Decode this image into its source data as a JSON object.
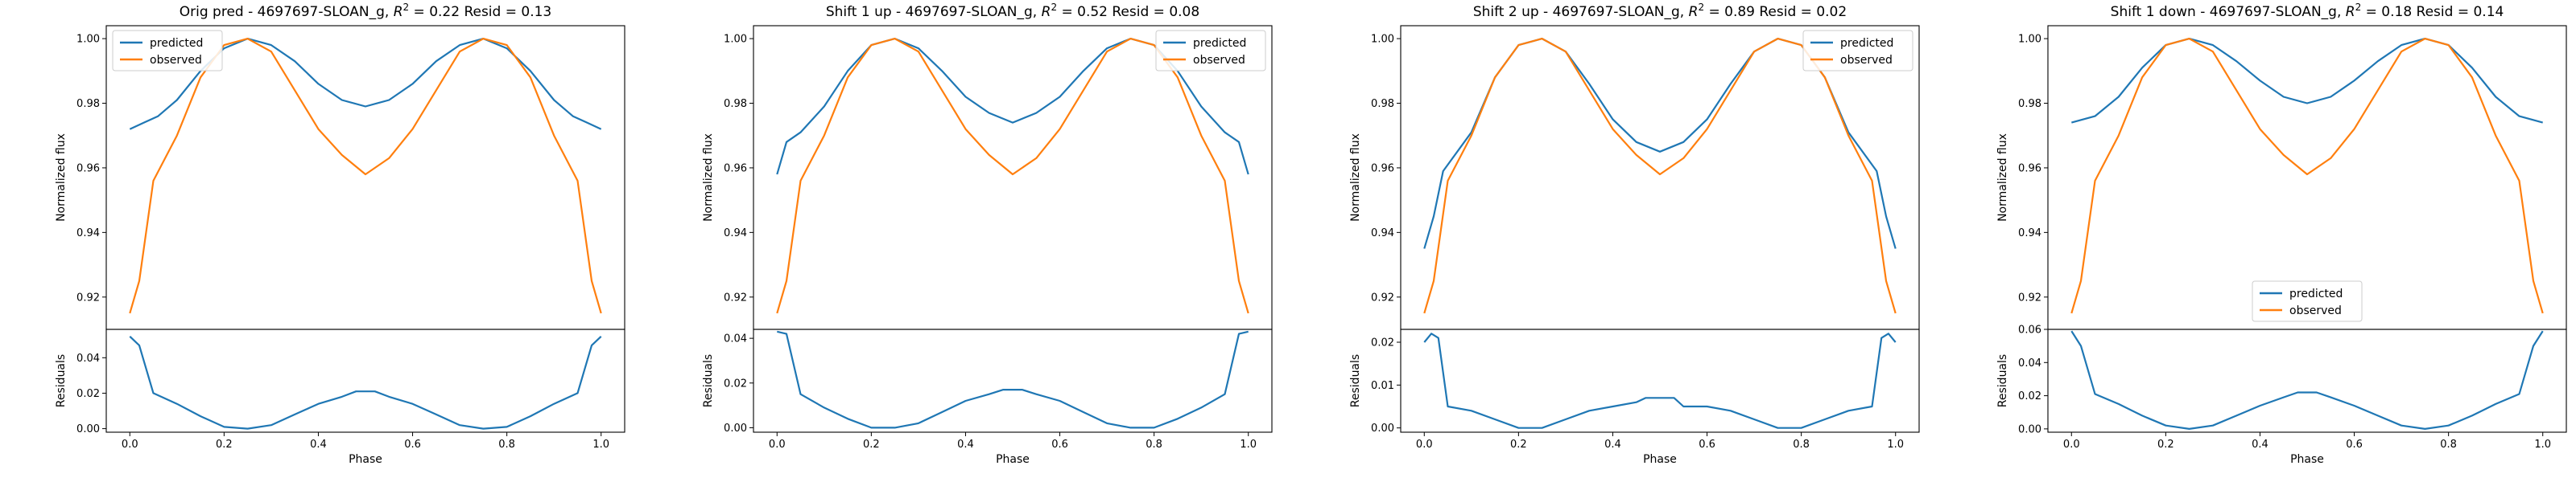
{
  "figure": {
    "background": "#ffffff"
  },
  "colors": {
    "predicted": "#1f77b4",
    "observed": "#ff7f0e",
    "axis": "#000000",
    "legend_border": "#cccccc"
  },
  "chart_data": [
    {
      "type": "line",
      "title": "Orig pred - 4697697-SLOAN_g, R² = 0.22 Resid = 0.13",
      "title_parts": {
        "prefix": "Orig pred - 4697697-SLOAN_g, ",
        "r": "R",
        "sup": "2",
        "suffix": " = 0.22 Resid = 0.13"
      },
      "xlabel": "Phase",
      "ylabel": "Normalized flux",
      "resid_ylabel": "Residuals",
      "xlim": [
        -0.05,
        1.05
      ],
      "xticks": [
        0.0,
        0.2,
        0.4,
        0.6,
        0.8,
        1.0
      ],
      "xtick_labels": [
        "0.0",
        "0.2",
        "0.4",
        "0.6",
        "0.8",
        "1.0"
      ],
      "ylim": [
        0.91,
        1.004
      ],
      "yticks": [
        0.92,
        0.94,
        0.96,
        0.98,
        1.0
      ],
      "ytick_labels": [
        "0.92",
        "0.94",
        "0.96",
        "0.98",
        "1.00"
      ],
      "resid_ylim": [
        -0.002,
        0.056
      ],
      "resid_yticks": [
        0.0,
        0.02,
        0.04
      ],
      "resid_ytick_labels": [
        "0.00",
        "0.02",
        "0.04"
      ],
      "legend": {
        "position": "upper left",
        "entries": [
          "predicted",
          "observed"
        ]
      },
      "series": [
        {
          "name": "predicted",
          "x": [
            0.0,
            0.03,
            0.06,
            0.1,
            0.15,
            0.2,
            0.25,
            0.3,
            0.35,
            0.4,
            0.45,
            0.5,
            0.55,
            0.6,
            0.65,
            0.7,
            0.75,
            0.8,
            0.85,
            0.9,
            0.94,
            0.97,
            1.0
          ],
          "y": [
            0.972,
            0.974,
            0.976,
            0.981,
            0.99,
            0.997,
            1.0,
            0.998,
            0.993,
            0.986,
            0.981,
            0.979,
            0.981,
            0.986,
            0.993,
            0.998,
            1.0,
            0.997,
            0.99,
            0.981,
            0.976,
            0.974,
            0.972
          ]
        },
        {
          "name": "observed",
          "x": [
            0.0,
            0.02,
            0.05,
            0.1,
            0.15,
            0.2,
            0.25,
            0.3,
            0.35,
            0.4,
            0.45,
            0.5,
            0.55,
            0.6,
            0.65,
            0.7,
            0.75,
            0.8,
            0.85,
            0.9,
            0.95,
            0.98,
            1.0
          ],
          "y": [
            0.915,
            0.925,
            0.956,
            0.97,
            0.988,
            0.998,
            1.0,
            0.996,
            0.984,
            0.972,
            0.964,
            0.958,
            0.963,
            0.972,
            0.984,
            0.996,
            1.0,
            0.998,
            0.988,
            0.97,
            0.956,
            0.925,
            0.915
          ]
        }
      ],
      "residuals": {
        "x": [
          0.0,
          0.02,
          0.05,
          0.1,
          0.15,
          0.2,
          0.25,
          0.3,
          0.35,
          0.4,
          0.45,
          0.48,
          0.5,
          0.52,
          0.55,
          0.6,
          0.65,
          0.7,
          0.75,
          0.8,
          0.85,
          0.9,
          0.95,
          0.98,
          1.0
        ],
        "y": [
          0.052,
          0.047,
          0.02,
          0.014,
          0.007,
          0.001,
          0.0,
          0.002,
          0.008,
          0.014,
          0.018,
          0.021,
          0.021,
          0.021,
          0.018,
          0.014,
          0.008,
          0.002,
          0.0,
          0.001,
          0.007,
          0.014,
          0.02,
          0.047,
          0.052
        ]
      }
    },
    {
      "type": "line",
      "title": "Shift 1 up - 4697697-SLOAN_g, R² = 0.52 Resid = 0.08",
      "title_parts": {
        "prefix": "Shift 1 up - 4697697-SLOAN_g, ",
        "r": "R",
        "sup": "2",
        "suffix": " = 0.52 Resid = 0.08"
      },
      "xlabel": "Phase",
      "ylabel": "Normalized flux",
      "resid_ylabel": "Residuals",
      "xlim": [
        -0.05,
        1.05
      ],
      "xticks": [
        0.0,
        0.2,
        0.4,
        0.6,
        0.8,
        1.0
      ],
      "xtick_labels": [
        "0.0",
        "0.2",
        "0.4",
        "0.6",
        "0.8",
        "1.0"
      ],
      "ylim": [
        0.91,
        1.004
      ],
      "yticks": [
        0.92,
        0.94,
        0.96,
        0.98,
        1.0
      ],
      "ytick_labels": [
        "0.92",
        "0.94",
        "0.96",
        "0.98",
        "1.00"
      ],
      "resid_ylim": [
        -0.002,
        0.044
      ],
      "resid_yticks": [
        0.0,
        0.02,
        0.04
      ],
      "resid_ytick_labels": [
        "0.00",
        "0.02",
        "0.04"
      ],
      "legend": {
        "position": "upper right",
        "entries": [
          "predicted",
          "observed"
        ]
      },
      "series": [
        {
          "name": "predicted",
          "x": [
            0.0,
            0.02,
            0.05,
            0.1,
            0.15,
            0.2,
            0.25,
            0.3,
            0.35,
            0.4,
            0.45,
            0.5,
            0.55,
            0.6,
            0.65,
            0.7,
            0.75,
            0.8,
            0.85,
            0.9,
            0.95,
            0.98,
            1.0
          ],
          "y": [
            0.958,
            0.968,
            0.971,
            0.979,
            0.99,
            0.998,
            1.0,
            0.997,
            0.99,
            0.982,
            0.977,
            0.974,
            0.977,
            0.982,
            0.99,
            0.997,
            1.0,
            0.998,
            0.99,
            0.979,
            0.971,
            0.968,
            0.958
          ]
        },
        {
          "name": "observed",
          "x": [
            0.0,
            0.02,
            0.05,
            0.1,
            0.15,
            0.2,
            0.25,
            0.3,
            0.35,
            0.4,
            0.45,
            0.5,
            0.55,
            0.6,
            0.65,
            0.7,
            0.75,
            0.8,
            0.85,
            0.9,
            0.95,
            0.98,
            1.0
          ],
          "y": [
            0.915,
            0.925,
            0.956,
            0.97,
            0.988,
            0.998,
            1.0,
            0.996,
            0.984,
            0.972,
            0.964,
            0.958,
            0.963,
            0.972,
            0.984,
            0.996,
            1.0,
            0.998,
            0.988,
            0.97,
            0.956,
            0.925,
            0.915
          ]
        }
      ],
      "residuals": {
        "x": [
          0.0,
          0.02,
          0.05,
          0.1,
          0.15,
          0.2,
          0.25,
          0.3,
          0.35,
          0.4,
          0.45,
          0.48,
          0.5,
          0.52,
          0.55,
          0.6,
          0.65,
          0.7,
          0.75,
          0.8,
          0.85,
          0.9,
          0.95,
          0.98,
          1.0
        ],
        "y": [
          0.043,
          0.042,
          0.015,
          0.009,
          0.004,
          0.0,
          0.0,
          0.002,
          0.007,
          0.012,
          0.015,
          0.017,
          0.017,
          0.017,
          0.015,
          0.012,
          0.007,
          0.002,
          0.0,
          0.0,
          0.004,
          0.009,
          0.015,
          0.042,
          0.043
        ]
      }
    },
    {
      "type": "line",
      "title": "Shift 2 up - 4697697-SLOAN_g, R² = 0.89 Resid = 0.02",
      "title_parts": {
        "prefix": "Shift 2 up - 4697697-SLOAN_g, ",
        "r": "R",
        "sup": "2",
        "suffix": " = 0.89 Resid = 0.02"
      },
      "xlabel": "Phase",
      "ylabel": "Normalized flux",
      "resid_ylabel": "Residuals",
      "xlim": [
        -0.05,
        1.05
      ],
      "xticks": [
        0.0,
        0.2,
        0.4,
        0.6,
        0.8,
        1.0
      ],
      "xtick_labels": [
        "0.0",
        "0.2",
        "0.4",
        "0.6",
        "0.8",
        "1.0"
      ],
      "ylim": [
        0.91,
        1.004
      ],
      "yticks": [
        0.92,
        0.94,
        0.96,
        0.98,
        1.0
      ],
      "ytick_labels": [
        "0.92",
        "0.94",
        "0.96",
        "0.98",
        "1.00"
      ],
      "resid_ylim": [
        -0.001,
        0.023
      ],
      "resid_yticks": [
        0.0,
        0.01,
        0.02
      ],
      "resid_ytick_labels": [
        "0.00",
        "0.01",
        "0.02"
      ],
      "legend": {
        "position": "upper right",
        "entries": [
          "predicted",
          "observed"
        ]
      },
      "series": [
        {
          "name": "predicted",
          "x": [
            0.0,
            0.02,
            0.04,
            0.1,
            0.15,
            0.2,
            0.25,
            0.3,
            0.35,
            0.4,
            0.45,
            0.5,
            0.55,
            0.6,
            0.65,
            0.7,
            0.75,
            0.8,
            0.85,
            0.9,
            0.96,
            0.98,
            1.0
          ],
          "y": [
            0.935,
            0.945,
            0.959,
            0.971,
            0.988,
            0.998,
            1.0,
            0.996,
            0.986,
            0.975,
            0.968,
            0.965,
            0.968,
            0.975,
            0.986,
            0.996,
            1.0,
            0.998,
            0.988,
            0.971,
            0.959,
            0.945,
            0.935
          ]
        },
        {
          "name": "observed",
          "x": [
            0.0,
            0.02,
            0.05,
            0.1,
            0.15,
            0.2,
            0.25,
            0.3,
            0.35,
            0.4,
            0.45,
            0.5,
            0.55,
            0.6,
            0.65,
            0.7,
            0.75,
            0.8,
            0.85,
            0.9,
            0.95,
            0.98,
            1.0
          ],
          "y": [
            0.915,
            0.925,
            0.956,
            0.97,
            0.988,
            0.998,
            1.0,
            0.996,
            0.984,
            0.972,
            0.964,
            0.958,
            0.963,
            0.972,
            0.984,
            0.996,
            1.0,
            0.998,
            0.988,
            0.97,
            0.956,
            0.925,
            0.915
          ]
        }
      ],
      "residuals": {
        "x": [
          0.0,
          0.015,
          0.03,
          0.05,
          0.1,
          0.15,
          0.2,
          0.25,
          0.3,
          0.35,
          0.4,
          0.45,
          0.47,
          0.5,
          0.53,
          0.55,
          0.6,
          0.65,
          0.7,
          0.75,
          0.8,
          0.85,
          0.9,
          0.95,
          0.97,
          0.985,
          1.0
        ],
        "y": [
          0.02,
          0.022,
          0.021,
          0.005,
          0.004,
          0.002,
          0.0,
          0.0,
          0.002,
          0.004,
          0.005,
          0.006,
          0.007,
          0.007,
          0.007,
          0.005,
          0.005,
          0.004,
          0.002,
          0.0,
          0.0,
          0.002,
          0.004,
          0.005,
          0.021,
          0.022,
          0.02
        ]
      }
    },
    {
      "type": "line",
      "title": "Shift 1 down - 4697697-SLOAN_g, R² = 0.18 Resid = 0.14",
      "title_parts": {
        "prefix": "Shift 1 down - 4697697-SLOAN_g, ",
        "r": "R",
        "sup": "2",
        "suffix": " = 0.18 Resid = 0.14"
      },
      "xlabel": "Phase",
      "ylabel": "Normalized flux",
      "resid_ylabel": "Residuals",
      "xlim": [
        -0.05,
        1.05
      ],
      "xticks": [
        0.0,
        0.2,
        0.4,
        0.6,
        0.8,
        1.0
      ],
      "xtick_labels": [
        "0.0",
        "0.2",
        "0.4",
        "0.6",
        "0.8",
        "1.0"
      ],
      "ylim": [
        0.91,
        1.004
      ],
      "yticks": [
        0.92,
        0.94,
        0.96,
        0.98,
        1.0
      ],
      "ytick_labels": [
        "0.92",
        "0.94",
        "0.96",
        "0.98",
        "1.00"
      ],
      "resid_ylim": [
        -0.002,
        0.06
      ],
      "resid_yticks": [
        0.0,
        0.02,
        0.04,
        0.06
      ],
      "resid_ytick_labels": [
        "0.00",
        "0.02",
        "0.04",
        "0.06"
      ],
      "legend": {
        "position": "lower center",
        "entries": [
          "predicted",
          "observed"
        ]
      },
      "series": [
        {
          "name": "predicted",
          "x": [
            0.0,
            0.05,
            0.1,
            0.15,
            0.2,
            0.25,
            0.3,
            0.35,
            0.4,
            0.45,
            0.5,
            0.55,
            0.6,
            0.65,
            0.7,
            0.75,
            0.8,
            0.85,
            0.9,
            0.95,
            1.0
          ],
          "y": [
            0.974,
            0.976,
            0.982,
            0.991,
            0.998,
            1.0,
            0.998,
            0.993,
            0.987,
            0.982,
            0.98,
            0.982,
            0.987,
            0.993,
            0.998,
            1.0,
            0.998,
            0.991,
            0.982,
            0.976,
            0.974
          ]
        },
        {
          "name": "observed",
          "x": [
            0.0,
            0.02,
            0.05,
            0.1,
            0.15,
            0.2,
            0.25,
            0.3,
            0.35,
            0.4,
            0.45,
            0.5,
            0.55,
            0.6,
            0.65,
            0.7,
            0.75,
            0.8,
            0.85,
            0.9,
            0.95,
            0.98,
            1.0
          ],
          "y": [
            0.915,
            0.925,
            0.956,
            0.97,
            0.988,
            0.998,
            1.0,
            0.996,
            0.984,
            0.972,
            0.964,
            0.958,
            0.963,
            0.972,
            0.984,
            0.996,
            1.0,
            0.998,
            0.988,
            0.97,
            0.956,
            0.925,
            0.915
          ]
        }
      ],
      "residuals": {
        "x": [
          0.0,
          0.02,
          0.05,
          0.1,
          0.15,
          0.2,
          0.25,
          0.3,
          0.35,
          0.4,
          0.45,
          0.48,
          0.5,
          0.52,
          0.55,
          0.6,
          0.65,
          0.7,
          0.75,
          0.8,
          0.85,
          0.9,
          0.95,
          0.98,
          1.0
        ],
        "y": [
          0.059,
          0.05,
          0.021,
          0.015,
          0.008,
          0.002,
          0.0,
          0.002,
          0.008,
          0.014,
          0.019,
          0.022,
          0.022,
          0.022,
          0.019,
          0.014,
          0.008,
          0.002,
          0.0,
          0.002,
          0.008,
          0.015,
          0.021,
          0.05,
          0.059
        ]
      }
    }
  ]
}
